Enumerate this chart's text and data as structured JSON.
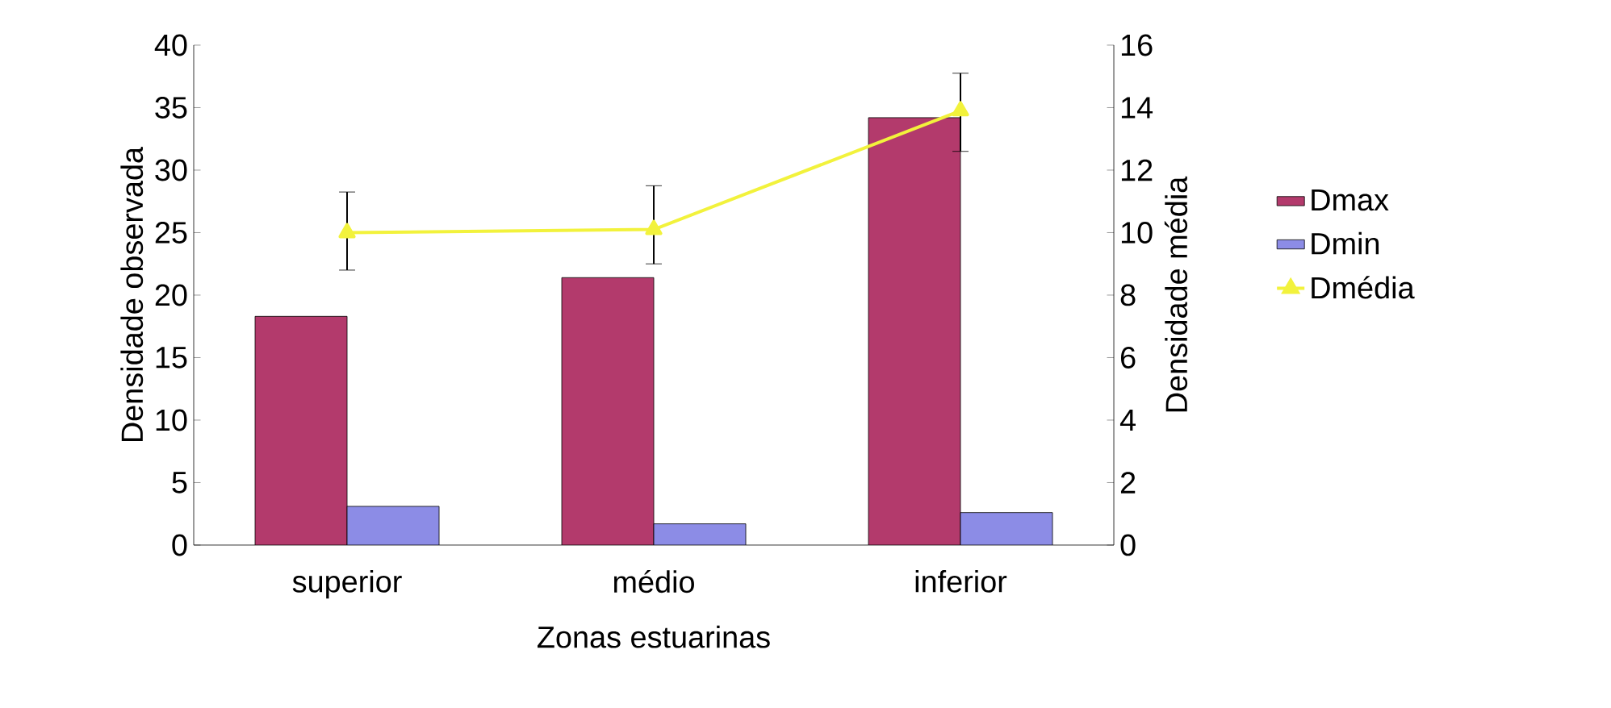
{
  "chart_data": {
    "type": "bar",
    "xlabel": "Zonas estuarinas",
    "ylabel": "Densidade observada",
    "y2label": "Densidade média",
    "categories": [
      "superior",
      "médio",
      "inferior"
    ],
    "series": [
      {
        "name": "Dmax",
        "color": "#b33a6c",
        "values": [
          18.3,
          21.4,
          34.2
        ]
      },
      {
        "name": "Dmin",
        "color": "#8c8ce6",
        "values": [
          3.1,
          1.7,
          2.6
        ]
      },
      {
        "name": "Dmédia",
        "type": "line",
        "axis": "y2",
        "color": "#f2f23c",
        "values": [
          10.0,
          10.1,
          13.9
        ],
        "errors": [
          [
            8.8,
            11.3
          ],
          [
            9.0,
            11.5
          ],
          [
            12.6,
            15.1
          ]
        ]
      }
    ],
    "ylim": [
      0,
      40
    ],
    "yticks": [
      0,
      5,
      10,
      15,
      20,
      25,
      30,
      35,
      40
    ],
    "y2lim": [
      0,
      16
    ],
    "y2ticks": [
      0,
      2,
      4,
      6,
      8,
      10,
      12,
      14,
      16
    ],
    "legend": "right",
    "marker": "triangle"
  }
}
